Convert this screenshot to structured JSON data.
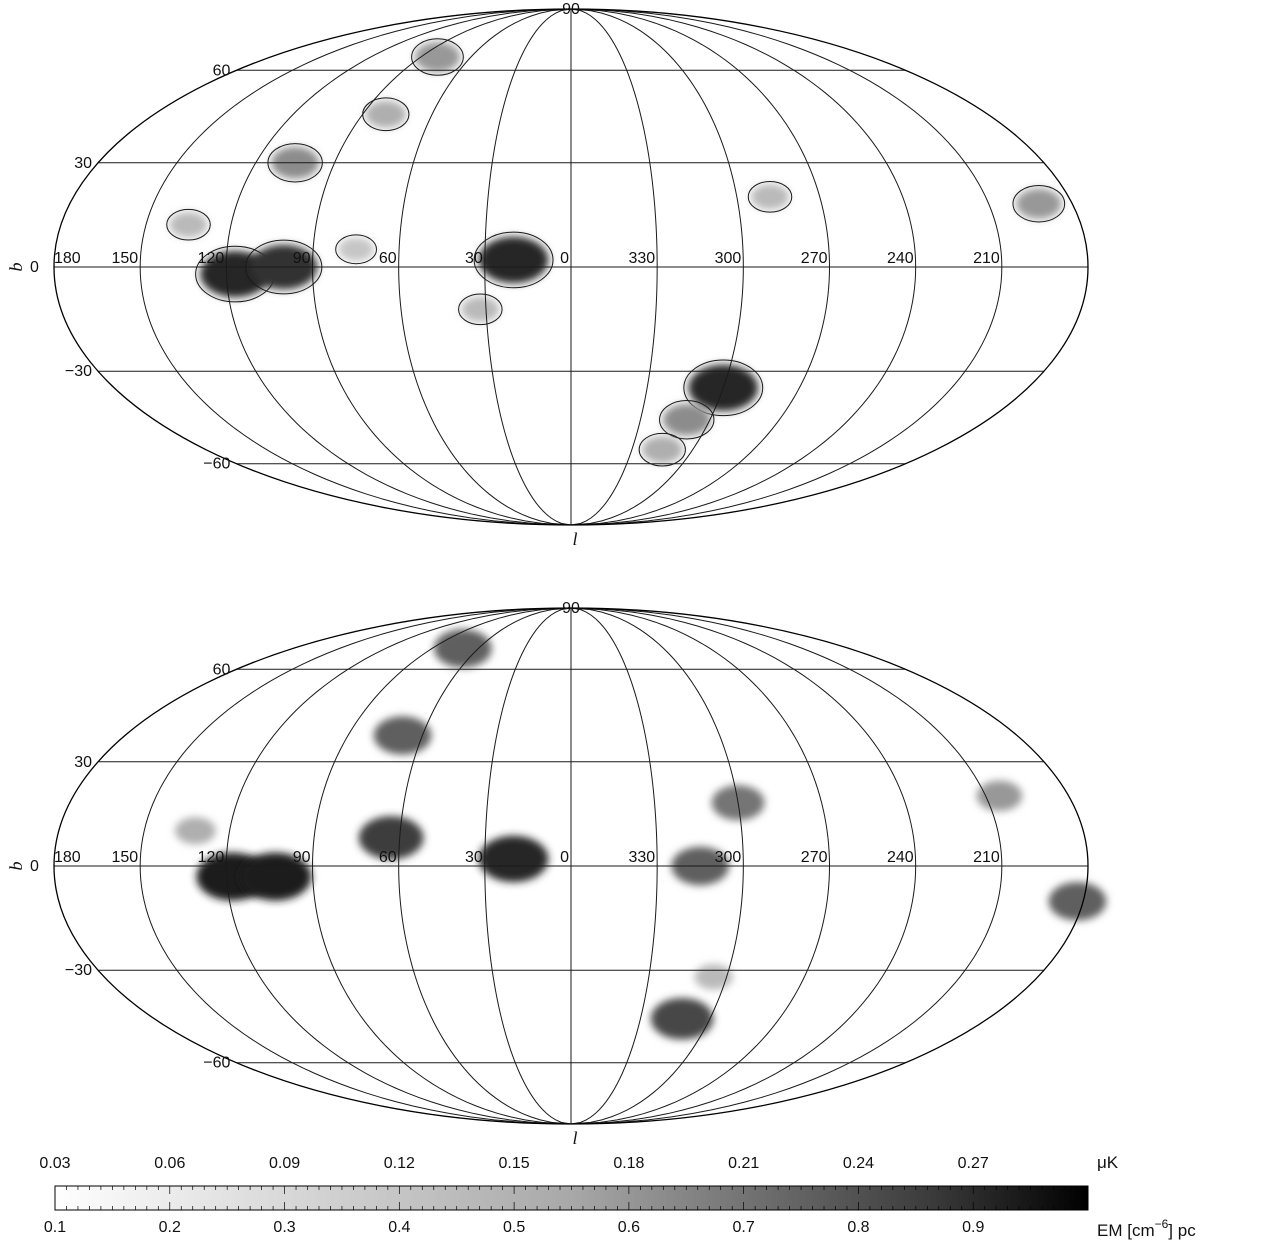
{
  "chart_data": [
    {
      "type": "heatmap",
      "projection": "Mollweide (Galactic coordinates)",
      "xlabel": "l",
      "ylabel": "b",
      "longitude_ticks": [
        "180",
        "150",
        "120",
        "90",
        "60",
        "30",
        "0",
        "330",
        "300",
        "270",
        "240",
        "210"
      ],
      "latitude_ticks": [
        "90",
        "60",
        "30",
        "0",
        "−30",
        "−60"
      ],
      "contours": true,
      "grid": true,
      "features": [
        {
          "l": 20,
          "b": 2,
          "level": 0.95
        },
        {
          "l": 117,
          "b": -2,
          "level": 0.95
        },
        {
          "l": 100,
          "b": 0,
          "level": 0.9
        },
        {
          "l": 300,
          "b": -35,
          "level": 0.95
        },
        {
          "l": 310,
          "b": -45,
          "level": 0.5
        },
        {
          "l": 315,
          "b": -55,
          "level": 0.35
        },
        {
          "l": 105,
          "b": 30,
          "level": 0.5
        },
        {
          "l": 80,
          "b": 45,
          "level": 0.35
        },
        {
          "l": 135,
          "b": 12,
          "level": 0.3
        },
        {
          "l": 75,
          "b": 5,
          "level": 0.25
        },
        {
          "l": 32,
          "b": -12,
          "level": 0.3
        },
        {
          "l": 80,
          "b": 65,
          "level": 0.45
        },
        {
          "l": 192,
          "b": 18,
          "level": 0.45
        },
        {
          "l": 288,
          "b": 20,
          "level": 0.3
        }
      ]
    },
    {
      "type": "heatmap",
      "projection": "Mollweide (Galactic coordinates)",
      "xlabel": "l",
      "ylabel": "b",
      "longitude_ticks": [
        "180",
        "150",
        "120",
        "90",
        "60",
        "30",
        "0",
        "330",
        "300",
        "270",
        "240",
        "210"
      ],
      "latitude_ticks": [
        "90",
        "60",
        "30",
        "0",
        "−30",
        "−60"
      ],
      "contours": false,
      "grid": true,
      "features": [
        {
          "l": 20,
          "b": 2,
          "level": 0.95
        },
        {
          "l": 118,
          "b": -3,
          "level": 1.0
        },
        {
          "l": 103,
          "b": -3,
          "level": 1.0
        },
        {
          "l": 63,
          "b": 8,
          "level": 0.85
        },
        {
          "l": 68,
          "b": 38,
          "level": 0.7
        },
        {
          "l": 132,
          "b": 10,
          "level": 0.35
        },
        {
          "l": 312,
          "b": -45,
          "level": 0.8
        },
        {
          "l": 305,
          "b": -32,
          "level": 0.3
        },
        {
          "l": 300,
          "b": 18,
          "level": 0.6
        },
        {
          "l": 315,
          "b": 0,
          "level": 0.7
        },
        {
          "l": 70,
          "b": 68,
          "level": 0.7
        },
        {
          "l": 205,
          "b": 20,
          "level": 0.45
        },
        {
          "l": 182,
          "b": -10,
          "level": 0.7
        }
      ]
    }
  ],
  "colorbar": {
    "top_ticks": [
      "0.03",
      "0.06",
      "0.09",
      "0.12",
      "0.15",
      "0.18",
      "0.21",
      "0.24",
      "0.27"
    ],
    "top_unit": "μK",
    "top_range": [
      0.03,
      0.3
    ],
    "bottom_ticks": [
      "0.1",
      "0.2",
      "0.3",
      "0.4",
      "0.5",
      "0.6",
      "0.7",
      "0.8",
      "0.9"
    ],
    "bottom_unit_base": "EM [cm",
    "bottom_unit_exp": "−6",
    "bottom_unit_tail": "] pc",
    "bottom_range": [
      0.1,
      1.0
    ]
  }
}
